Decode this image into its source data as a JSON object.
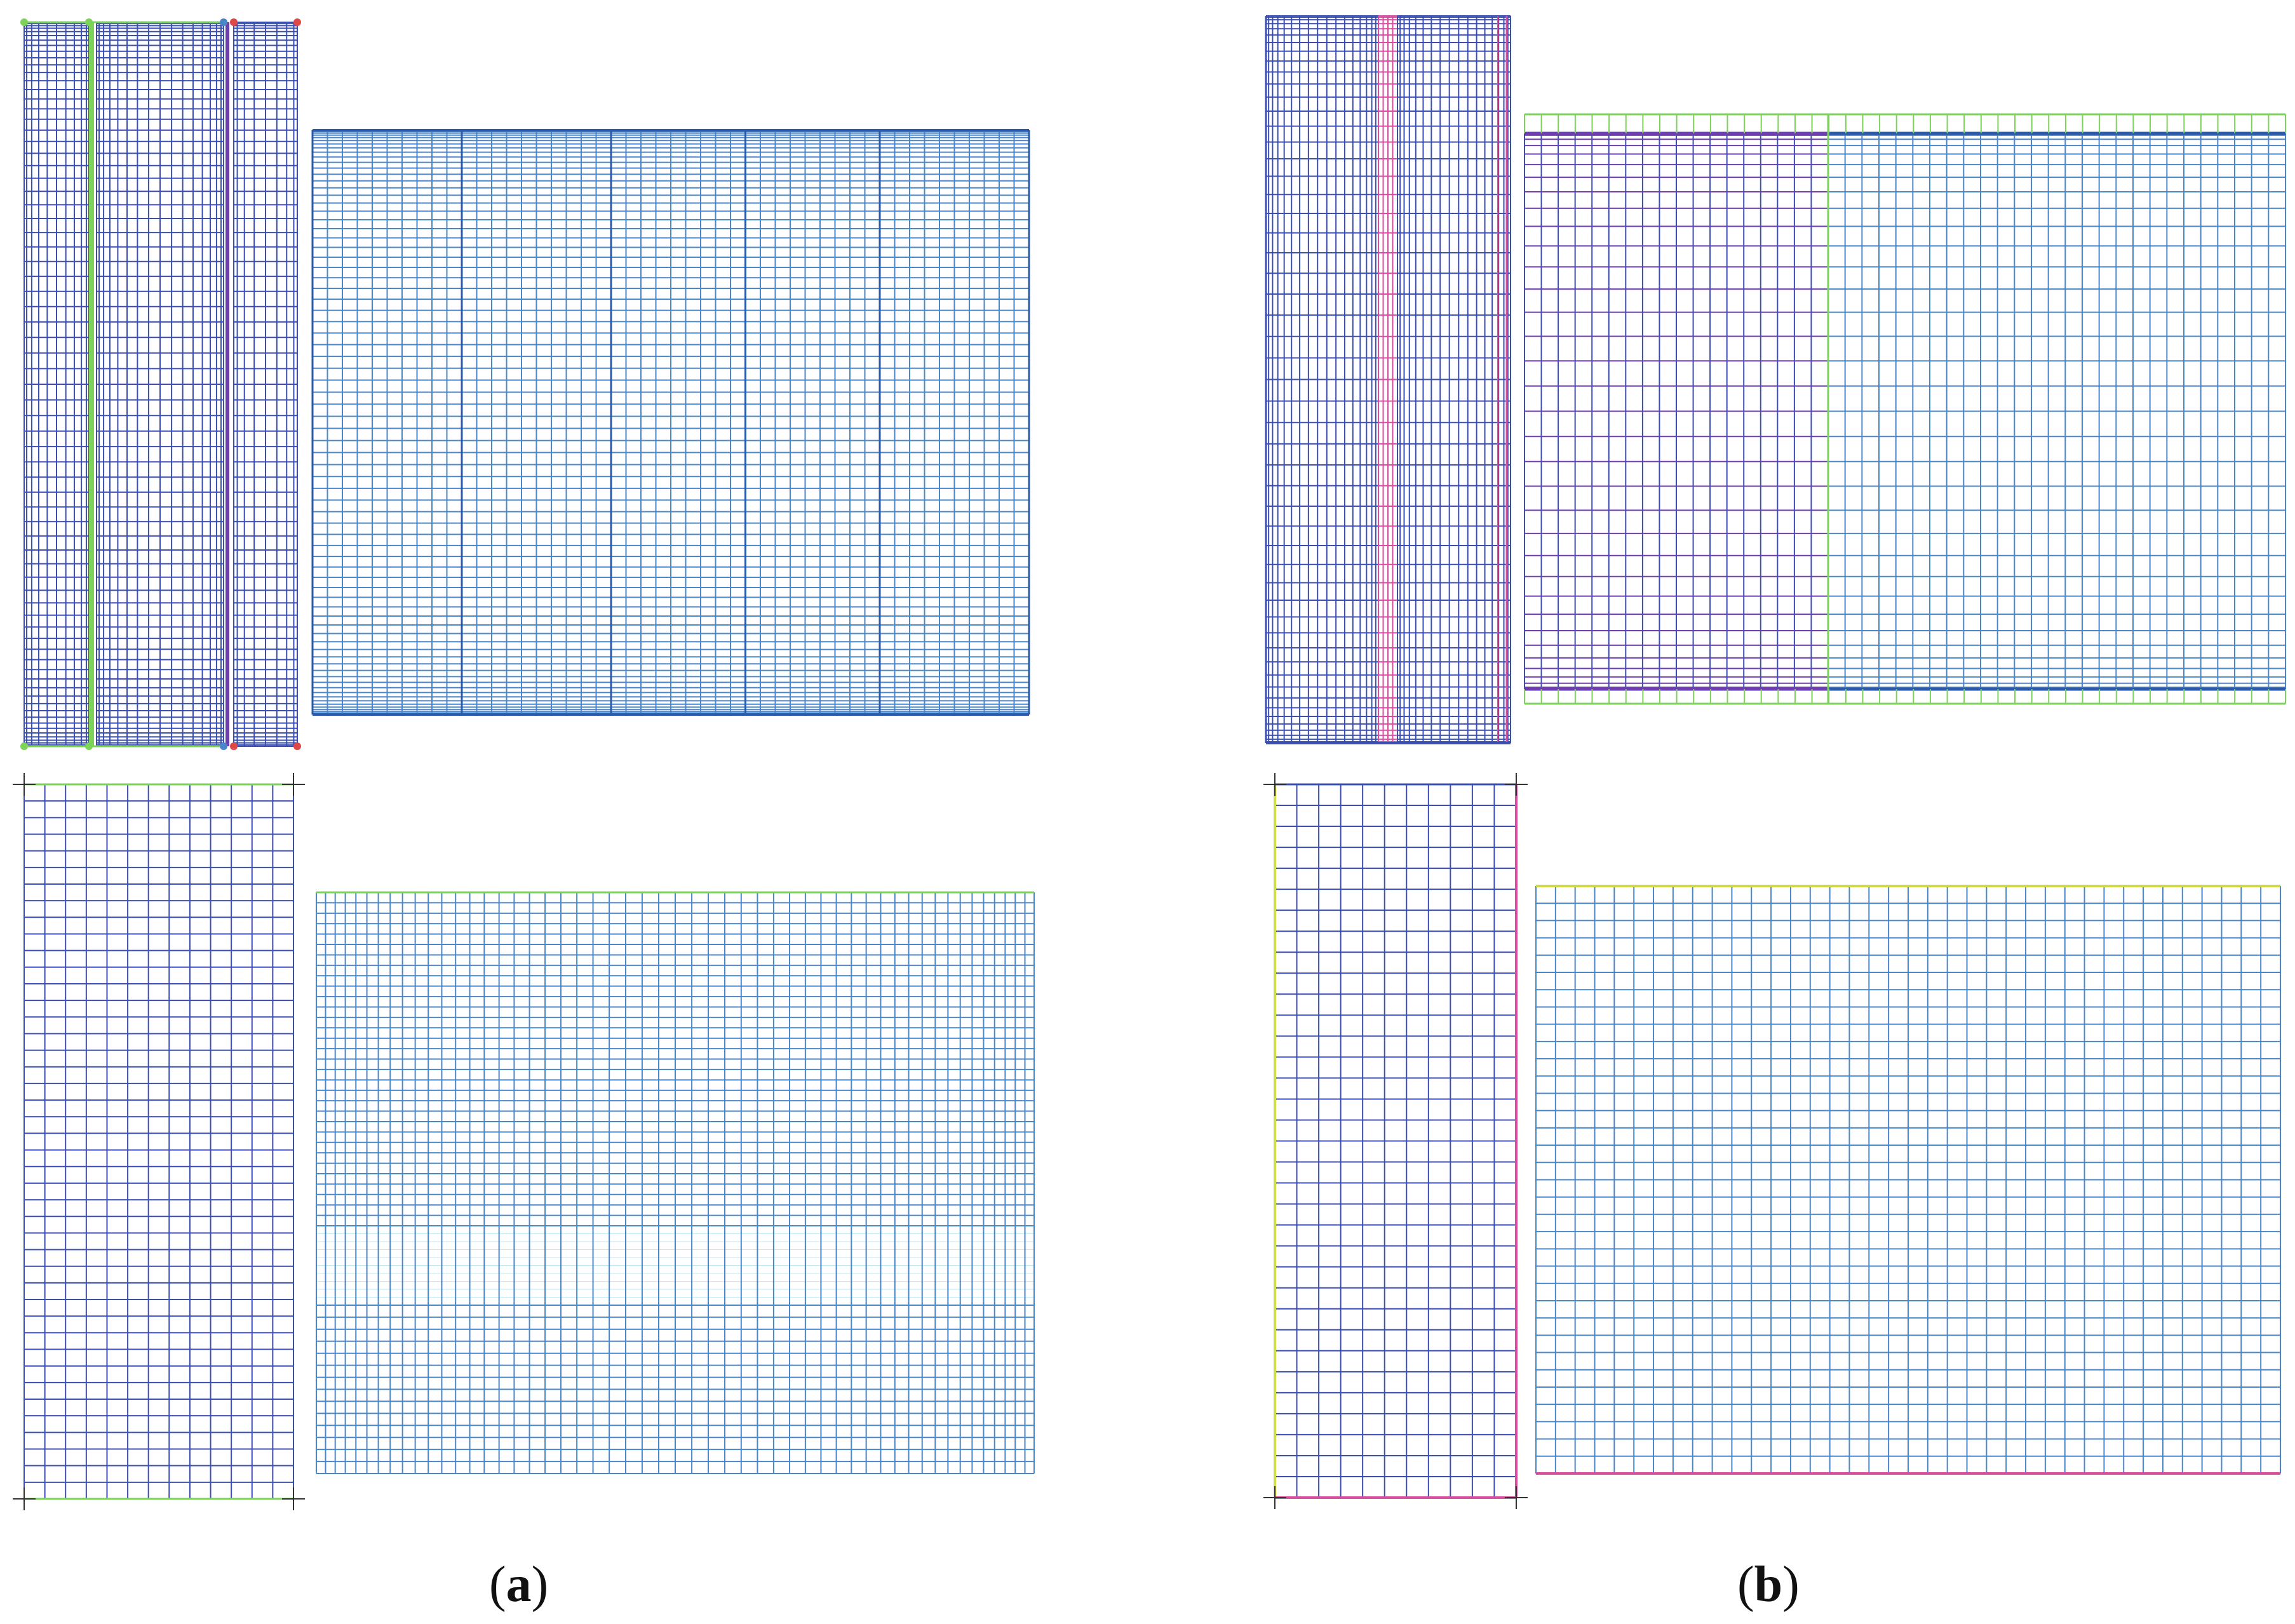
{
  "captions": {
    "a": "a",
    "b": "b"
  },
  "colors": {
    "blue": "#4a86c8",
    "navy": "#3b4fb3",
    "purple": "#6b3fb0",
    "green": "#7dd35a",
    "magenta": "#d94ca0",
    "red": "#e04848",
    "darkblue": "#2a5aa8",
    "cyan": "#bfe9f5",
    "black": "#333333"
  }
}
